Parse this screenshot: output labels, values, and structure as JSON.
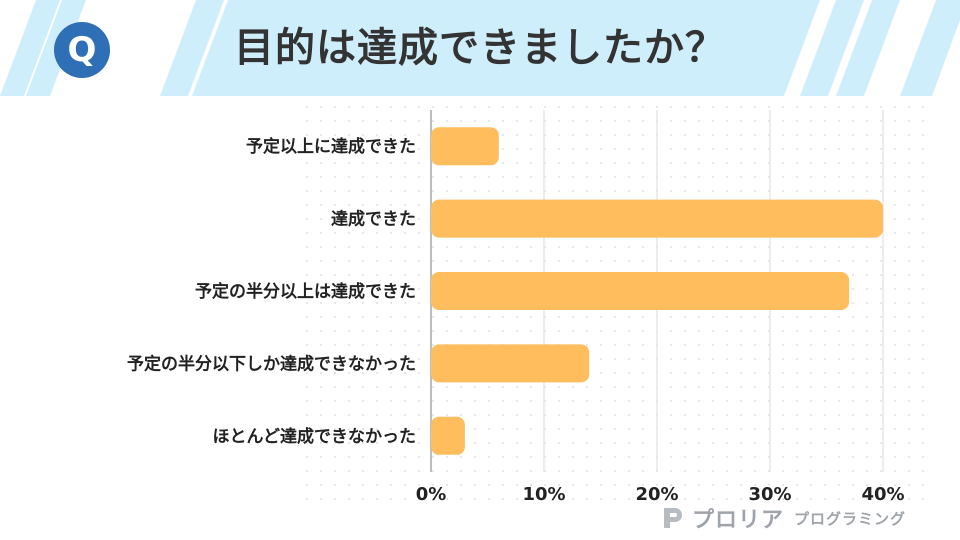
{
  "header": {
    "badge_letter": "Q",
    "title": "目的は達成できましたか？"
  },
  "colors": {
    "bar": "#ffbd5e",
    "badge": "#2f6fb5",
    "stripe": "#cfeefb",
    "grid": "#e6e6e6"
  },
  "chart_data": {
    "type": "bar",
    "orientation": "horizontal",
    "title": "",
    "xlabel": "",
    "ylabel": "",
    "categories": [
      "予定以上に達成できた",
      "達成できた",
      "予定の半分以上は達成できた",
      "予定の半分以下しか達成できなかった",
      "ほとんど達成できなかった"
    ],
    "values": [
      6,
      40,
      37,
      14,
      3
    ],
    "unit": "%",
    "xlim": [
      0,
      40
    ],
    "x_ticks": [
      "0%",
      "10%",
      "20%",
      "30%",
      "40%"
    ],
    "grid": true,
    "legend": "none"
  },
  "footer": {
    "brand": "プロリア",
    "sub": "プログラミング",
    "logo_icon": "proria-p-logo-icon"
  }
}
